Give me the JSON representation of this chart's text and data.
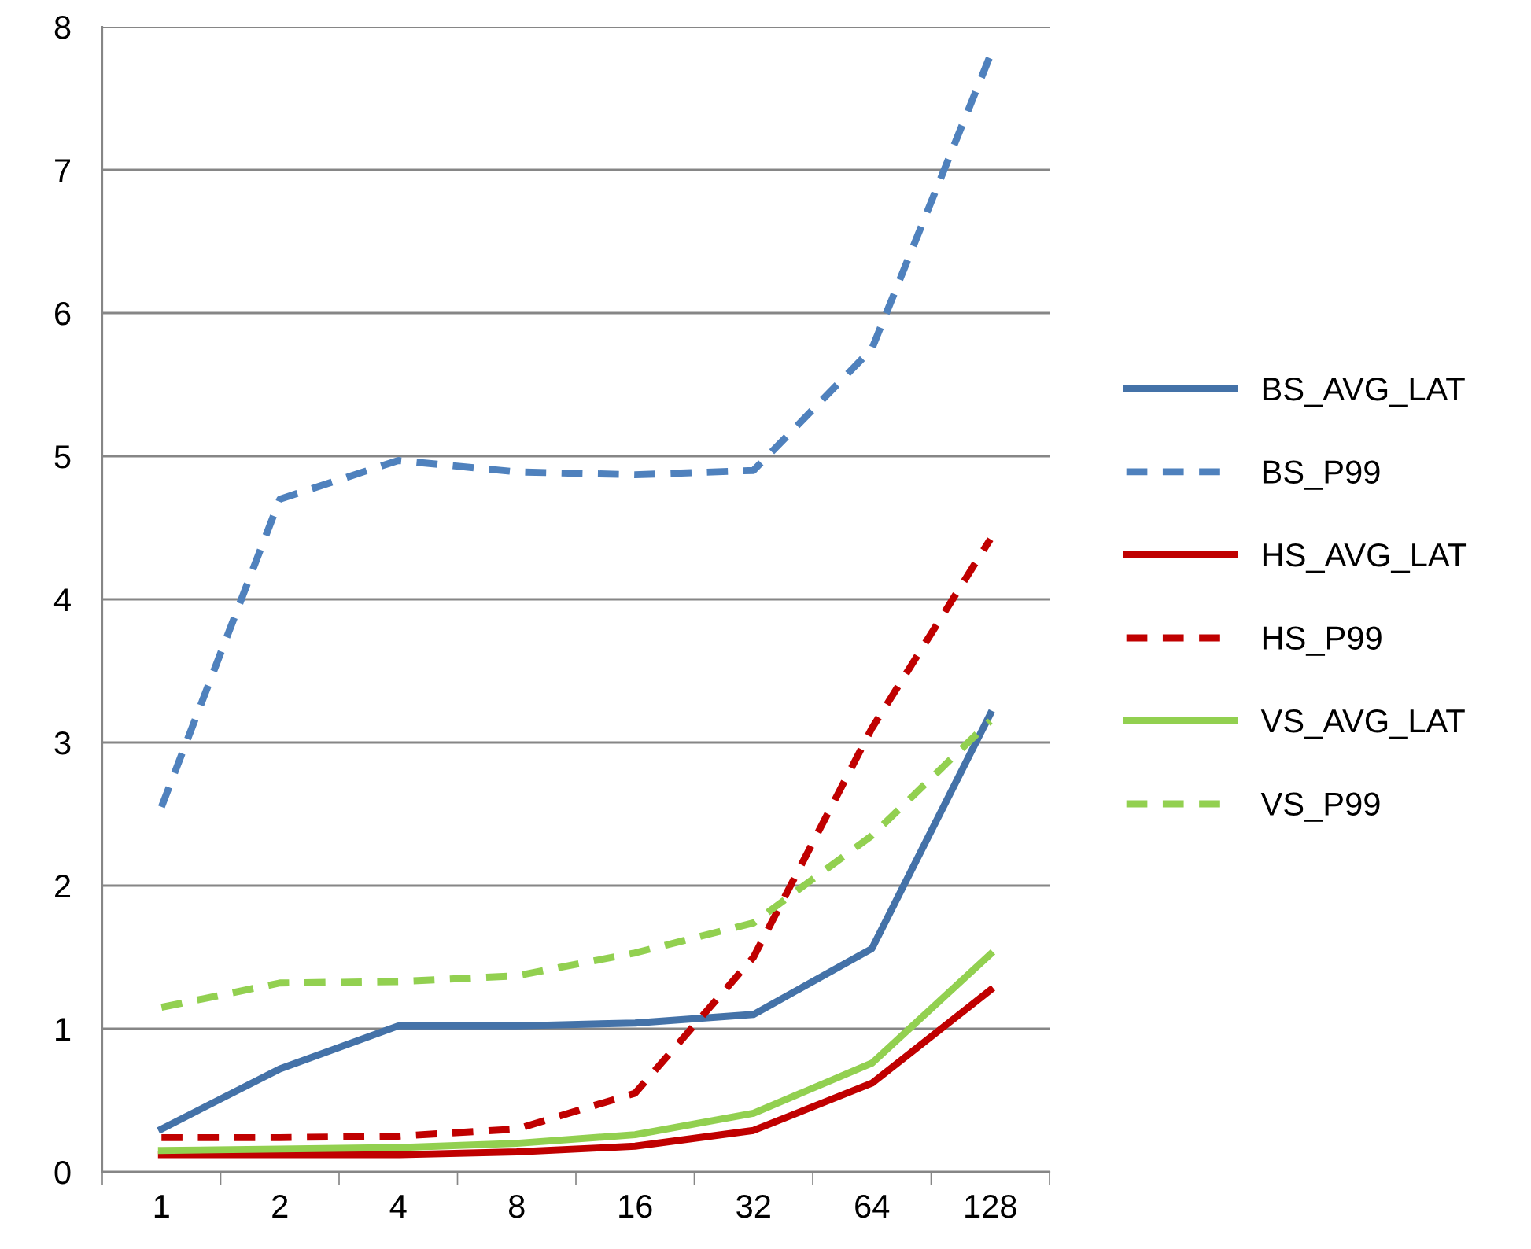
{
  "chart_data": {
    "type": "line",
    "categories": [
      "1",
      "2",
      "4",
      "8",
      "16",
      "32",
      "64",
      "128"
    ],
    "series": [
      {
        "name": "BS_AVG_LAT",
        "color": "#4472a8",
        "line_style": "solid",
        "values": [
          0.3,
          0.72,
          1.02,
          1.02,
          1.04,
          1.1,
          1.56,
          3.2
        ]
      },
      {
        "name": "BS_P99",
        "color": "#4f81bd",
        "line_style": "dashed",
        "values": [
          2.55,
          4.7,
          4.97,
          4.89,
          4.87,
          4.9,
          5.75,
          7.8
        ]
      },
      {
        "name": "HS_AVG_LAT",
        "color": "#c00000",
        "line_style": "solid",
        "values": [
          0.12,
          0.12,
          0.12,
          0.14,
          0.18,
          0.29,
          0.62,
          1.27
        ]
      },
      {
        "name": "HS_P99",
        "color": "#c00000",
        "line_style": "dashed",
        "values": [
          0.24,
          0.24,
          0.25,
          0.3,
          0.55,
          1.5,
          3.1,
          4.42
        ]
      },
      {
        "name": "VS_AVG_LAT",
        "color": "#92d050",
        "line_style": "solid",
        "values": [
          0.15,
          0.16,
          0.17,
          0.2,
          0.26,
          0.41,
          0.76,
          1.52
        ]
      },
      {
        "name": "VS_P99",
        "color": "#92d050",
        "line_style": "dashed",
        "values": [
          1.15,
          1.32,
          1.33,
          1.37,
          1.53,
          1.74,
          2.35,
          3.15
        ]
      }
    ],
    "ylim": [
      0,
      8
    ],
    "yticks": [
      0,
      1,
      2,
      3,
      4,
      5,
      6,
      7,
      8
    ],
    "grid": "y",
    "legend": "right",
    "marker": "none"
  }
}
